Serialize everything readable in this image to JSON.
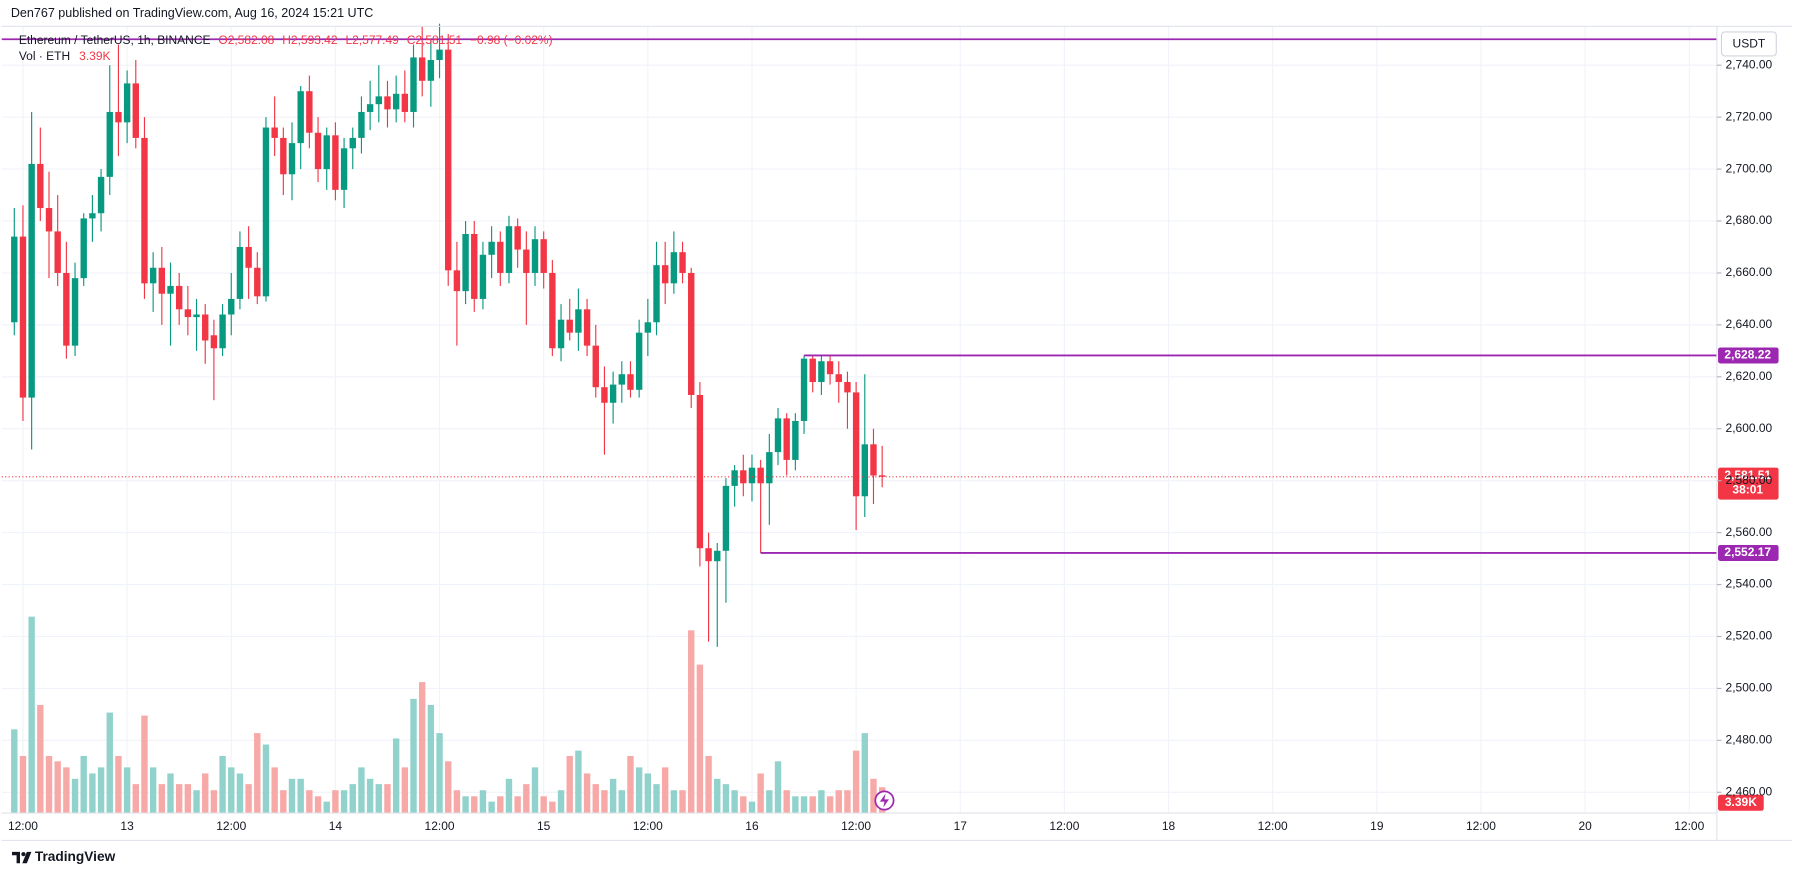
{
  "chart_data": {
    "type": "candlestick",
    "publisher": "Den767 published on TradingView.com, Aug 16, 2024 15:21 UTC",
    "title": "Ethereum / TetherUS, 1h, BINANCE",
    "legend": {
      "open": "O2,582.08",
      "high": "H2,593.42",
      "low": "L2,577.49",
      "close": "C2,581.51",
      "change": "−0.98 (−0.02%)"
    },
    "volume_label": "Vol · ETH",
    "volume_value_label": "3.39K",
    "currency": "USDT",
    "brand": "TradingView",
    "categories": [
      null,
      "12:00",
      null,
      null,
      null,
      null,
      null,
      null,
      null,
      null,
      null,
      null,
      null,
      "13",
      null,
      null,
      null,
      null,
      null,
      null,
      null,
      null,
      null,
      null,
      null,
      "12:00",
      null,
      null,
      null,
      null,
      null,
      null,
      null,
      null,
      null,
      null,
      null,
      "14",
      null,
      null,
      null,
      null,
      null,
      null,
      null,
      null,
      null,
      null,
      null,
      "12:00",
      null,
      null,
      null,
      null,
      null,
      null,
      null,
      null,
      null,
      null,
      null,
      "15",
      null,
      null,
      null,
      null,
      null,
      null,
      null,
      null,
      null,
      null,
      null,
      "12:00",
      null,
      null,
      null,
      null,
      null,
      null,
      null,
      null,
      null,
      null,
      null,
      "16",
      null,
      null,
      null,
      null,
      null,
      null,
      null,
      null,
      null,
      null,
      null,
      "12:00",
      null,
      null,
      null
    ],
    "future_labels": [
      "17",
      "12:00",
      "18",
      "12:00",
      "19",
      "12:00",
      "20",
      "12:00"
    ],
    "open": [
      2641,
      2674,
      2612,
      2702,
      2685,
      2676,
      2660,
      2632,
      2658,
      2681,
      2683,
      2697,
      2722,
      2718,
      2733,
      2712,
      2656,
      2662,
      2652,
      2655,
      2646,
      2643,
      2644,
      2636,
      2631,
      2644,
      2650,
      2670,
      2662,
      2651,
      2716,
      2712,
      2698,
      2710,
      2730,
      2714,
      2700,
      2713,
      2692,
      2708,
      2712,
      2722,
      2725,
      2728,
      2723,
      2729,
      2722,
      2743,
      2734,
      2742,
      2746,
      2661,
      2653,
      2675,
      2650,
      2667,
      2672,
      2660,
      2678,
      2669,
      2660,
      2673,
      2660,
      2631,
      2642,
      2637,
      2646,
      2632,
      2616,
      2610,
      2617,
      2621,
      2615,
      2637,
      2641,
      2663,
      2656,
      2668,
      2660,
      2613,
      2554,
      2549,
      2553,
      2578,
      2584,
      2579,
      2585,
      2579,
      2591,
      2604,
      2588,
      2603,
      2627,
      2618,
      2626,
      2621,
      2618,
      2614,
      2574,
      2594,
      2582.08
    ],
    "high": [
      2685,
      2686,
      2722,
      2716,
      2699,
      2690,
      2672,
      2664,
      2683,
      2690,
      2700,
      2740,
      2748,
      2738,
      2742,
      2720,
      2668,
      2670,
      2664,
      2660,
      2655,
      2650,
      2648,
      2642,
      2648,
      2660,
      2676,
      2678,
      2668,
      2720,
      2728,
      2716,
      2718,
      2732,
      2736,
      2720,
      2716,
      2718,
      2712,
      2716,
      2728,
      2734,
      2740,
      2734,
      2736,
      2738,
      2748,
      2755,
      2750,
      2756,
      2752,
      2672,
      2680,
      2680,
      2672,
      2678,
      2676,
      2682,
      2681,
      2676,
      2678,
      2676,
      2665,
      2648,
      2650,
      2654,
      2650,
      2640,
      2624,
      2622,
      2626,
      2626,
      2642,
      2650,
      2672,
      2672,
      2676,
      2672,
      2662,
      2618,
      2560,
      2556,
      2581,
      2586,
      2590,
      2590,
      2588,
      2598,
      2608,
      2606,
      2606,
      2628.22,
      2628,
      2628,
      2628,
      2626,
      2622,
      2618,
      2621,
      2600,
      2593.42
    ],
    "low": [
      2636,
      2603,
      2592,
      2680,
      2658,
      2655,
      2627,
      2628,
      2655,
      2672,
      2676,
      2690,
      2705,
      2710,
      2708,
      2650,
      2645,
      2640,
      2632,
      2640,
      2636,
      2630,
      2625,
      2611,
      2628,
      2636,
      2646,
      2650,
      2648,
      2649,
      2705,
      2690,
      2688,
      2700,
      2708,
      2695,
      2692,
      2688,
      2685,
      2700,
      2706,
      2715,
      2718,
      2716,
      2718,
      2718,
      2716,
      2728,
      2724,
      2735,
      2655,
      2632,
      2648,
      2645,
      2646,
      2658,
      2655,
      2656,
      2662,
      2640,
      2655,
      2654,
      2628,
      2626,
      2634,
      2630,
      2628,
      2612,
      2590,
      2602,
      2610,
      2612,
      2612,
      2628,
      2636,
      2648,
      2652,
      2656,
      2608,
      2547,
      2518,
      2516,
      2533,
      2570,
      2574,
      2572,
      2552.17,
      2563,
      2586,
      2582,
      2584,
      2598,
      2614,
      2613,
      2617,
      2610,
      2600,
      2561,
      2566,
      2571,
      2577.49
    ],
    "close": [
      2674,
      2612,
      2702,
      2685,
      2676,
      2660,
      2632,
      2658,
      2681,
      2683,
      2697,
      2722,
      2718,
      2733,
      2712,
      2656,
      2662,
      2652,
      2655,
      2646,
      2643,
      2644,
      2634,
      2631,
      2644,
      2650,
      2670,
      2662,
      2651,
      2716,
      2712,
      2698,
      2710,
      2730,
      2714,
      2700,
      2713,
      2692,
      2708,
      2712,
      2722,
      2725,
      2728,
      2723,
      2729,
      2722,
      2743,
      2734,
      2742,
      2746,
      2661,
      2653,
      2675,
      2650,
      2667,
      2672,
      2660,
      2678,
      2669,
      2660,
      2673,
      2660,
      2631,
      2642,
      2637,
      2646,
      2632,
      2616,
      2610,
      2617,
      2621,
      2615,
      2637,
      2641,
      2663,
      2656,
      2668,
      2660,
      2613,
      2554,
      2549,
      2553,
      2578,
      2584,
      2579,
      2585,
      2579,
      2591,
      2604,
      2588,
      2603,
      2627,
      2618,
      2626,
      2621,
      2618,
      2614,
      2574,
      2594,
      2582,
      2581.51
    ],
    "volume": [
      11000,
      7500,
      25800,
      14200,
      7500,
      6800,
      6000,
      4500,
      7500,
      5200,
      6000,
      13200,
      7500,
      6000,
      3800,
      12800,
      6000,
      3800,
      5200,
      3800,
      3800,
      3000,
      5200,
      3000,
      7500,
      6000,
      5200,
      3800,
      10500,
      9000,
      6000,
      3000,
      4500,
      4500,
      3000,
      2200,
      1500,
      3000,
      3000,
      3800,
      6000,
      4500,
      3800,
      3800,
      9800,
      6000,
      15000,
      17200,
      14200,
      10500,
      6800,
      3000,
      2200,
      2200,
      3000,
      1500,
      2200,
      4500,
      2200,
      3800,
      6000,
      2200,
      1500,
      3000,
      7500,
      8200,
      5200,
      3800,
      3000,
      4500,
      3000,
      7500,
      6000,
      5200,
      3800,
      6000,
      3000,
      3000,
      24000,
      19500,
      7500,
      4500,
      3800,
      3000,
      2200,
      1500,
      5200,
      3000,
      6800,
      3000,
      2200,
      2200,
      2200,
      3000,
      2200,
      3000,
      3000,
      8200,
      10500,
      4500,
      3390
    ],
    "up_color": "#089981",
    "down_color": "#f23645",
    "volume_up_color": "#92d2cc",
    "volume_down_color": "#f7a9a7",
    "ylim": [
      2452,
      2755
    ],
    "yticks": [
      {
        "value": 2460,
        "label": "2,460.00"
      },
      {
        "value": 2480,
        "label": "2,480.00"
      },
      {
        "value": 2500,
        "label": "2,500.00"
      },
      {
        "value": 2520,
        "label": "2,520.00"
      },
      {
        "value": 2540,
        "label": "2,540.00"
      },
      {
        "value": 2560,
        "label": "2,560.00"
      },
      {
        "value": 2580,
        "label": "2,580.00"
      },
      {
        "value": 2600,
        "label": "2,600.00"
      },
      {
        "value": 2620,
        "label": "2,620.00"
      },
      {
        "value": 2640,
        "label": "2,640.00"
      },
      {
        "value": 2660,
        "label": "2,660.00"
      },
      {
        "value": 2680,
        "label": "2,680.00"
      },
      {
        "value": 2700,
        "label": "2,700.00"
      },
      {
        "value": 2720,
        "label": "2,720.00"
      },
      {
        "value": 2740,
        "label": "2,740.00"
      }
    ],
    "levels": [
      {
        "value": 2750,
        "color": "#9c27b0"
      },
      {
        "value": 2628.22,
        "label": "2,628.22",
        "color": "#9c27b0"
      },
      {
        "value": 2552.17,
        "label": "2,552.17",
        "color": "#9c27b0"
      }
    ],
    "last_price": {
      "value": 2581.51,
      "label": "2,581.51",
      "countdown": "38:01",
      "color": "#f23645"
    },
    "grid": true
  }
}
